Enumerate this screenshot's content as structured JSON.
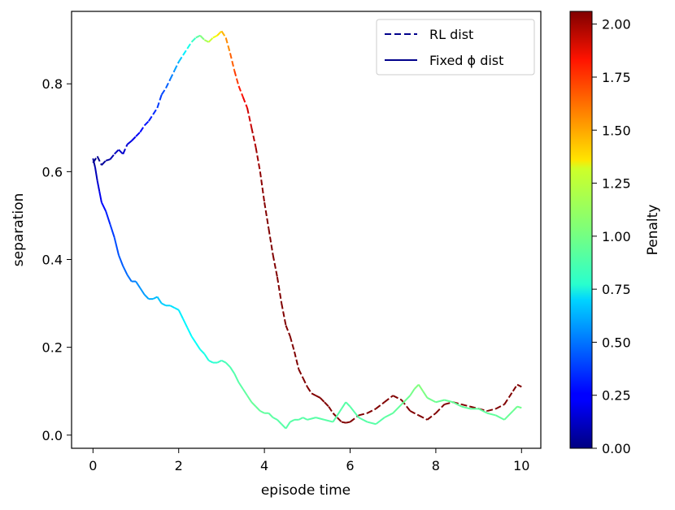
{
  "chart_data": {
    "type": "line",
    "xlabel": "episode time",
    "ylabel": "separation",
    "xlim": [
      -0.5,
      10.45
    ],
    "ylim": [
      -0.03,
      0.965
    ],
    "xticks": [
      0,
      2,
      4,
      6,
      8,
      10
    ],
    "yticks": [
      0.0,
      0.2,
      0.4,
      0.6,
      0.8
    ],
    "xtick_labels": [
      "0",
      "2",
      "4",
      "6",
      "8",
      "10"
    ],
    "ytick_labels": [
      "0.0",
      "0.2",
      "0.4",
      "0.6",
      "0.8"
    ],
    "legend": {
      "position": "top-right",
      "entries": [
        {
          "label": "RL dist",
          "style": "dashed",
          "color": "#00008b"
        },
        {
          "label": "Fixed ϕ dist",
          "style": "solid",
          "color": "#00008b"
        }
      ]
    },
    "colorbar": {
      "label": "Penalty",
      "colormap": "jet",
      "min": 0.0,
      "max": 2.06,
      "ticks": [
        0.0,
        0.25,
        0.5,
        0.75,
        1.0,
        1.25,
        1.5,
        1.75,
        2.0
      ],
      "tick_labels": [
        "0.00",
        "0.25",
        "0.50",
        "0.75",
        "1.00",
        "1.25",
        "1.50",
        "1.75",
        "2.00"
      ]
    },
    "series": [
      {
        "name": "RL dist",
        "style": "dashed",
        "points": [
          [
            0.0,
            0.62,
            0.02
          ],
          [
            0.1,
            0.635,
            0.03
          ],
          [
            0.2,
            0.615,
            0.05
          ],
          [
            0.3,
            0.625,
            0.06
          ],
          [
            0.4,
            0.628,
            0.08
          ],
          [
            0.5,
            0.64,
            0.12
          ],
          [
            0.6,
            0.65,
            0.14
          ],
          [
            0.7,
            0.64,
            0.15
          ],
          [
            0.8,
            0.662,
            0.18
          ],
          [
            0.9,
            0.67,
            0.2
          ],
          [
            1.0,
            0.68,
            0.23
          ],
          [
            1.1,
            0.69,
            0.26
          ],
          [
            1.2,
            0.705,
            0.28
          ],
          [
            1.3,
            0.715,
            0.3
          ],
          [
            1.4,
            0.73,
            0.33
          ],
          [
            1.5,
            0.745,
            0.36
          ],
          [
            1.6,
            0.775,
            0.39
          ],
          [
            1.7,
            0.79,
            0.42
          ],
          [
            1.8,
            0.81,
            0.48
          ],
          [
            1.9,
            0.83,
            0.55
          ],
          [
            2.0,
            0.85,
            0.62
          ],
          [
            2.1,
            0.865,
            0.7
          ],
          [
            2.2,
            0.88,
            0.78
          ],
          [
            2.3,
            0.895,
            0.85
          ],
          [
            2.4,
            0.905,
            0.92
          ],
          [
            2.5,
            0.91,
            1.0
          ],
          [
            2.6,
            0.9,
            1.07
          ],
          [
            2.7,
            0.895,
            1.15
          ],
          [
            2.8,
            0.905,
            1.22
          ],
          [
            2.9,
            0.91,
            1.3
          ],
          [
            3.0,
            0.92,
            1.4
          ],
          [
            3.1,
            0.905,
            1.48
          ],
          [
            3.2,
            0.87,
            1.57
          ],
          [
            3.3,
            0.83,
            1.65
          ],
          [
            3.4,
            0.795,
            1.72
          ],
          [
            3.5,
            0.77,
            1.8
          ],
          [
            3.6,
            0.745,
            1.87
          ],
          [
            3.7,
            0.7,
            1.93
          ],
          [
            3.8,
            0.655,
            1.98
          ],
          [
            3.9,
            0.6,
            2.02
          ],
          [
            4.0,
            0.53,
            2.05
          ],
          [
            4.1,
            0.47,
            2.06
          ],
          [
            4.2,
            0.41,
            2.06
          ],
          [
            4.3,
            0.36,
            2.06
          ],
          [
            4.4,
            0.3,
            2.06
          ],
          [
            4.5,
            0.25,
            2.06
          ],
          [
            4.6,
            0.225,
            2.06
          ],
          [
            4.7,
            0.19,
            2.06
          ],
          [
            4.8,
            0.15,
            2.06
          ],
          [
            4.9,
            0.13,
            2.06
          ],
          [
            5.0,
            0.11,
            2.06
          ],
          [
            5.1,
            0.095,
            2.06
          ],
          [
            5.2,
            0.09,
            2.06
          ],
          [
            5.3,
            0.085,
            2.06
          ],
          [
            5.4,
            0.075,
            2.06
          ],
          [
            5.5,
            0.065,
            2.06
          ],
          [
            5.6,
            0.05,
            2.06
          ],
          [
            5.7,
            0.04,
            2.06
          ],
          [
            5.8,
            0.03,
            2.06
          ],
          [
            5.9,
            0.028,
            2.06
          ],
          [
            6.0,
            0.03,
            2.06
          ],
          [
            6.2,
            0.045,
            2.06
          ],
          [
            6.4,
            0.05,
            2.06
          ],
          [
            6.6,
            0.06,
            2.06
          ],
          [
            6.8,
            0.075,
            2.06
          ],
          [
            7.0,
            0.09,
            2.06
          ],
          [
            7.2,
            0.08,
            2.06
          ],
          [
            7.4,
            0.055,
            2.06
          ],
          [
            7.6,
            0.045,
            2.06
          ],
          [
            7.8,
            0.035,
            2.06
          ],
          [
            8.0,
            0.05,
            2.06
          ],
          [
            8.2,
            0.07,
            2.06
          ],
          [
            8.4,
            0.075,
            2.06
          ],
          [
            8.6,
            0.07,
            2.06
          ],
          [
            8.8,
            0.065,
            2.06
          ],
          [
            9.0,
            0.06,
            2.06
          ],
          [
            9.2,
            0.055,
            2.06
          ],
          [
            9.4,
            0.06,
            2.06
          ],
          [
            9.6,
            0.07,
            2.06
          ],
          [
            9.8,
            0.1,
            2.06
          ],
          [
            9.9,
            0.115,
            2.06
          ],
          [
            10.0,
            0.11,
            2.06
          ]
        ]
      },
      {
        "name": "Fixed ϕ dist",
        "style": "solid",
        "points": [
          [
            0.0,
            0.63,
            0.03
          ],
          [
            0.05,
            0.61,
            0.08
          ],
          [
            0.1,
            0.58,
            0.15
          ],
          [
            0.15,
            0.555,
            0.2
          ],
          [
            0.2,
            0.53,
            0.25
          ],
          [
            0.3,
            0.51,
            0.3
          ],
          [
            0.4,
            0.48,
            0.35
          ],
          [
            0.5,
            0.45,
            0.4
          ],
          [
            0.6,
            0.41,
            0.43
          ],
          [
            0.7,
            0.385,
            0.45
          ],
          [
            0.8,
            0.365,
            0.48
          ],
          [
            0.9,
            0.35,
            0.5
          ],
          [
            1.0,
            0.35,
            0.53
          ],
          [
            1.1,
            0.335,
            0.55
          ],
          [
            1.2,
            0.32,
            0.58
          ],
          [
            1.3,
            0.31,
            0.6
          ],
          [
            1.4,
            0.31,
            0.62
          ],
          [
            1.5,
            0.315,
            0.65
          ],
          [
            1.6,
            0.3,
            0.67
          ],
          [
            1.7,
            0.295,
            0.68
          ],
          [
            1.8,
            0.295,
            0.7
          ],
          [
            1.9,
            0.29,
            0.72
          ],
          [
            2.0,
            0.285,
            0.73
          ],
          [
            2.1,
            0.265,
            0.75
          ],
          [
            2.2,
            0.245,
            0.76
          ],
          [
            2.3,
            0.225,
            0.77
          ],
          [
            2.4,
            0.21,
            0.78
          ],
          [
            2.5,
            0.195,
            0.8
          ],
          [
            2.6,
            0.185,
            0.82
          ],
          [
            2.7,
            0.17,
            0.84
          ],
          [
            2.8,
            0.165,
            0.86
          ],
          [
            2.9,
            0.165,
            0.88
          ],
          [
            3.0,
            0.17,
            0.9
          ],
          [
            3.1,
            0.165,
            0.92
          ],
          [
            3.2,
            0.155,
            0.93
          ],
          [
            3.3,
            0.14,
            0.94
          ],
          [
            3.4,
            0.12,
            0.95
          ],
          [
            3.5,
            0.105,
            0.96
          ],
          [
            3.6,
            0.09,
            0.97
          ],
          [
            3.7,
            0.075,
            0.98
          ],
          [
            3.8,
            0.065,
            0.98
          ],
          [
            3.9,
            0.055,
            0.97
          ],
          [
            4.0,
            0.05,
            0.97
          ],
          [
            4.1,
            0.05,
            0.96
          ],
          [
            4.2,
            0.04,
            0.96
          ],
          [
            4.3,
            0.035,
            0.95
          ],
          [
            4.4,
            0.025,
            0.95
          ],
          [
            4.5,
            0.015,
            0.95
          ],
          [
            4.6,
            0.03,
            0.95
          ],
          [
            4.7,
            0.035,
            0.95
          ],
          [
            4.8,
            0.035,
            0.95
          ],
          [
            4.9,
            0.04,
            0.95
          ],
          [
            5.0,
            0.035,
            0.95
          ],
          [
            5.2,
            0.04,
            0.95
          ],
          [
            5.4,
            0.035,
            0.95
          ],
          [
            5.6,
            0.03,
            0.95
          ],
          [
            5.8,
            0.06,
            0.95
          ],
          [
            5.9,
            0.075,
            0.95
          ],
          [
            6.0,
            0.065,
            0.95
          ],
          [
            6.2,
            0.04,
            0.95
          ],
          [
            6.4,
            0.03,
            0.95
          ],
          [
            6.6,
            0.025,
            0.95
          ],
          [
            6.8,
            0.04,
            0.95
          ],
          [
            7.0,
            0.05,
            0.97
          ],
          [
            7.2,
            0.07,
            0.98
          ],
          [
            7.4,
            0.09,
            1.0
          ],
          [
            7.5,
            0.105,
            1.02
          ],
          [
            7.6,
            0.115,
            1.04
          ],
          [
            7.7,
            0.1,
            1.03
          ],
          [
            7.8,
            0.085,
            1.01
          ],
          [
            8.0,
            0.075,
            0.99
          ],
          [
            8.2,
            0.08,
            0.98
          ],
          [
            8.4,
            0.075,
            0.98
          ],
          [
            8.6,
            0.065,
            0.97
          ],
          [
            8.8,
            0.06,
            0.97
          ],
          [
            9.0,
            0.06,
            0.97
          ],
          [
            9.2,
            0.05,
            0.97
          ],
          [
            9.4,
            0.045,
            0.97
          ],
          [
            9.6,
            0.035,
            0.98
          ],
          [
            9.8,
            0.055,
            0.99
          ],
          [
            9.9,
            0.065,
            1.0
          ],
          [
            10.0,
            0.062,
            1.0
          ]
        ]
      }
    ]
  }
}
